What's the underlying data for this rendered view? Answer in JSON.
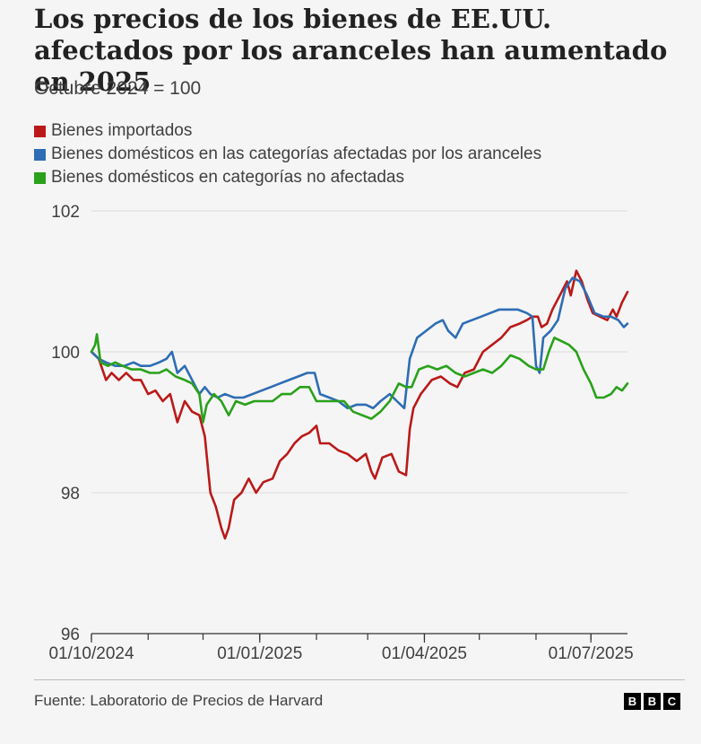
{
  "title": "Los precios de los bienes de EE.UU. afectados por los aranceles han aumentado en 2025",
  "subtitle": "Octubre 2024 = 100",
  "source": "Fuente: Laboratorio de Precios de Harvard",
  "logo": [
    "B",
    "B",
    "C"
  ],
  "chart_data": {
    "type": "line",
    "title": "Los precios de los bienes de EE.UU. afectados por los aranceles han aumentado en 2025",
    "subtitle": "Octubre 2024 = 100",
    "xlabel": "",
    "ylabel": "",
    "xlim": [
      "2024-10-01",
      "2025-07-21"
    ],
    "ylim": [
      96,
      102
    ],
    "yticks": [
      96,
      98,
      100,
      102
    ],
    "xticks": [
      "2024-10-01",
      "2025-01-01",
      "2025-04-01",
      "2025-07-01"
    ],
    "xtick_labels": [
      "01/10/2024",
      "01/01/2025",
      "01/04/2025",
      "01/07/2025"
    ],
    "grid": true,
    "legend": "top-left",
    "series": [
      {
        "name": "Bienes importados",
        "color": "#bb1919",
        "points": [
          [
            "2024-10-01",
            100.0
          ],
          [
            "2024-10-05",
            99.9
          ],
          [
            "2024-10-09",
            99.6
          ],
          [
            "2024-10-12",
            99.7
          ],
          [
            "2024-10-16",
            99.6
          ],
          [
            "2024-10-20",
            99.7
          ],
          [
            "2024-10-24",
            99.6
          ],
          [
            "2024-10-28",
            99.6
          ],
          [
            "2024-11-01",
            99.4
          ],
          [
            "2024-11-05",
            99.45
          ],
          [
            "2024-11-09",
            99.3
          ],
          [
            "2024-11-13",
            99.4
          ],
          [
            "2024-11-17",
            99.0
          ],
          [
            "2024-11-21",
            99.3
          ],
          [
            "2024-11-25",
            99.15
          ],
          [
            "2024-11-29",
            99.1
          ],
          [
            "2024-12-02",
            98.8
          ],
          [
            "2024-12-05",
            98.0
          ],
          [
            "2024-12-08",
            97.8
          ],
          [
            "2024-12-11",
            97.5
          ],
          [
            "2024-12-13",
            97.35
          ],
          [
            "2024-12-15",
            97.5
          ],
          [
            "2024-12-18",
            97.9
          ],
          [
            "2024-12-22",
            98.0
          ],
          [
            "2024-12-26",
            98.2
          ],
          [
            "2024-12-30",
            98.0
          ],
          [
            "2025-01-03",
            98.15
          ],
          [
            "2025-01-08",
            98.2
          ],
          [
            "2025-01-12",
            98.45
          ],
          [
            "2025-01-16",
            98.55
          ],
          [
            "2025-01-20",
            98.7
          ],
          [
            "2025-01-24",
            98.8
          ],
          [
            "2025-01-28",
            98.85
          ],
          [
            "2025-02-01",
            98.95
          ],
          [
            "2025-02-03",
            98.7
          ],
          [
            "2025-02-08",
            98.7
          ],
          [
            "2025-02-13",
            98.6
          ],
          [
            "2025-02-18",
            98.55
          ],
          [
            "2025-02-23",
            98.45
          ],
          [
            "2025-02-28",
            98.55
          ],
          [
            "2025-03-03",
            98.3
          ],
          [
            "2025-03-05",
            98.2
          ],
          [
            "2025-03-09",
            98.5
          ],
          [
            "2025-03-14",
            98.55
          ],
          [
            "2025-03-18",
            98.3
          ],
          [
            "2025-03-22",
            98.25
          ],
          [
            "2025-03-24",
            98.9
          ],
          [
            "2025-03-26",
            99.2
          ],
          [
            "2025-03-30",
            99.4
          ],
          [
            "2025-04-05",
            99.6
          ],
          [
            "2025-04-10",
            99.65
          ],
          [
            "2025-04-15",
            99.55
          ],
          [
            "2025-04-19",
            99.5
          ],
          [
            "2025-04-23",
            99.7
          ],
          [
            "2025-04-28",
            99.75
          ],
          [
            "2025-05-03",
            100.0
          ],
          [
            "2025-05-08",
            100.1
          ],
          [
            "2025-05-13",
            100.2
          ],
          [
            "2025-05-18",
            100.35
          ],
          [
            "2025-05-23",
            100.4
          ],
          [
            "2025-05-27",
            100.45
          ],
          [
            "2025-05-30",
            100.5
          ],
          [
            "2025-06-02",
            100.5
          ],
          [
            "2025-06-04",
            100.35
          ],
          [
            "2025-06-07",
            100.4
          ],
          [
            "2025-06-10",
            100.6
          ],
          [
            "2025-06-14",
            100.8
          ],
          [
            "2025-06-18",
            101.0
          ],
          [
            "2025-06-20",
            100.8
          ],
          [
            "2025-06-23",
            101.15
          ],
          [
            "2025-06-26",
            101.0
          ],
          [
            "2025-06-29",
            100.75
          ],
          [
            "2025-07-02",
            100.55
          ],
          [
            "2025-07-06",
            100.5
          ],
          [
            "2025-07-10",
            100.45
          ],
          [
            "2025-07-13",
            100.6
          ],
          [
            "2025-07-15",
            100.5
          ],
          [
            "2025-07-18",
            100.7
          ],
          [
            "2025-07-21",
            100.85
          ]
        ]
      },
      {
        "name": "Bienes domésticos en las categorías afectadas por los aranceles",
        "color": "#2e6db4",
        "points": [
          [
            "2024-10-01",
            100.0
          ],
          [
            "2024-10-05",
            99.9
          ],
          [
            "2024-10-09",
            99.85
          ],
          [
            "2024-10-14",
            99.8
          ],
          [
            "2024-10-19",
            99.8
          ],
          [
            "2024-10-24",
            99.85
          ],
          [
            "2024-10-28",
            99.8
          ],
          [
            "2024-11-02",
            99.8
          ],
          [
            "2024-11-07",
            99.85
          ],
          [
            "2024-11-11",
            99.9
          ],
          [
            "2024-11-14",
            100.0
          ],
          [
            "2024-11-17",
            99.7
          ],
          [
            "2024-11-21",
            99.8
          ],
          [
            "2024-11-25",
            99.6
          ],
          [
            "2024-11-29",
            99.4
          ],
          [
            "2024-12-02",
            99.5
          ],
          [
            "2024-12-05",
            99.4
          ],
          [
            "2024-12-09",
            99.35
          ],
          [
            "2024-12-13",
            99.4
          ],
          [
            "2024-12-18",
            99.35
          ],
          [
            "2024-12-23",
            99.35
          ],
          [
            "2024-12-28",
            99.4
          ],
          [
            "2025-01-02",
            99.45
          ],
          [
            "2025-01-07",
            99.5
          ],
          [
            "2025-01-12",
            99.55
          ],
          [
            "2025-01-17",
            99.6
          ],
          [
            "2025-01-22",
            99.65
          ],
          [
            "2025-01-27",
            99.7
          ],
          [
            "2025-01-31",
            99.7
          ],
          [
            "2025-02-03",
            99.4
          ],
          [
            "2025-02-08",
            99.35
          ],
          [
            "2025-02-13",
            99.3
          ],
          [
            "2025-02-18",
            99.2
          ],
          [
            "2025-02-23",
            99.25
          ],
          [
            "2025-02-28",
            99.25
          ],
          [
            "2025-03-04",
            99.2
          ],
          [
            "2025-03-08",
            99.3
          ],
          [
            "2025-03-13",
            99.4
          ],
          [
            "2025-03-17",
            99.3
          ],
          [
            "2025-03-21",
            99.2
          ],
          [
            "2025-03-24",
            99.9
          ],
          [
            "2025-03-28",
            100.2
          ],
          [
            "2025-04-02",
            100.3
          ],
          [
            "2025-04-07",
            100.4
          ],
          [
            "2025-04-11",
            100.45
          ],
          [
            "2025-04-14",
            100.3
          ],
          [
            "2025-04-18",
            100.2
          ],
          [
            "2025-04-22",
            100.4
          ],
          [
            "2025-04-27",
            100.45
          ],
          [
            "2025-05-02",
            100.5
          ],
          [
            "2025-05-07",
            100.55
          ],
          [
            "2025-05-12",
            100.6
          ],
          [
            "2025-05-17",
            100.6
          ],
          [
            "2025-05-22",
            100.6
          ],
          [
            "2025-05-27",
            100.55
          ],
          [
            "2025-05-30",
            100.5
          ],
          [
            "2025-06-01",
            99.8
          ],
          [
            "2025-06-03",
            99.7
          ],
          [
            "2025-06-05",
            100.2
          ],
          [
            "2025-06-09",
            100.3
          ],
          [
            "2025-06-13",
            100.45
          ],
          [
            "2025-06-17",
            100.9
          ],
          [
            "2025-06-21",
            101.05
          ],
          [
            "2025-06-25",
            101.0
          ],
          [
            "2025-06-29",
            100.8
          ],
          [
            "2025-07-03",
            100.55
          ],
          [
            "2025-07-08",
            100.5
          ],
          [
            "2025-07-12",
            100.5
          ],
          [
            "2025-07-16",
            100.45
          ],
          [
            "2025-07-19",
            100.35
          ],
          [
            "2025-07-21",
            100.4
          ]
        ]
      },
      {
        "name": "Bienes domésticos en categorías no afectadas",
        "color": "#2aa11b",
        "points": [
          [
            "2024-10-01",
            100.0
          ],
          [
            "2024-10-03",
            100.1
          ],
          [
            "2024-10-04",
            100.25
          ],
          [
            "2024-10-06",
            99.85
          ],
          [
            "2024-10-10",
            99.8
          ],
          [
            "2024-10-14",
            99.85
          ],
          [
            "2024-10-18",
            99.8
          ],
          [
            "2024-10-23",
            99.75
          ],
          [
            "2024-10-28",
            99.75
          ],
          [
            "2024-11-02",
            99.7
          ],
          [
            "2024-11-07",
            99.7
          ],
          [
            "2024-11-11",
            99.75
          ],
          [
            "2024-11-16",
            99.65
          ],
          [
            "2024-11-21",
            99.6
          ],
          [
            "2024-11-25",
            99.55
          ],
          [
            "2024-11-29",
            99.4
          ],
          [
            "2024-12-01",
            99.0
          ],
          [
            "2024-12-03",
            99.25
          ],
          [
            "2024-12-07",
            99.4
          ],
          [
            "2024-12-11",
            99.3
          ],
          [
            "2024-12-15",
            99.1
          ],
          [
            "2024-12-19",
            99.3
          ],
          [
            "2024-12-24",
            99.25
          ],
          [
            "2024-12-29",
            99.3
          ],
          [
            "2025-01-03",
            99.3
          ],
          [
            "2025-01-08",
            99.3
          ],
          [
            "2025-01-13",
            99.4
          ],
          [
            "2025-01-18",
            99.4
          ],
          [
            "2025-01-23",
            99.5
          ],
          [
            "2025-01-28",
            99.5
          ],
          [
            "2025-02-01",
            99.3
          ],
          [
            "2025-02-06",
            99.3
          ],
          [
            "2025-02-11",
            99.3
          ],
          [
            "2025-02-16",
            99.3
          ],
          [
            "2025-02-21",
            99.15
          ],
          [
            "2025-02-26",
            99.1
          ],
          [
            "2025-03-03",
            99.05
          ],
          [
            "2025-03-08",
            99.15
          ],
          [
            "2025-03-13",
            99.3
          ],
          [
            "2025-03-18",
            99.55
          ],
          [
            "2025-03-22",
            99.5
          ],
          [
            "2025-03-25",
            99.5
          ],
          [
            "2025-03-29",
            99.75
          ],
          [
            "2025-04-03",
            99.8
          ],
          [
            "2025-04-08",
            99.75
          ],
          [
            "2025-04-13",
            99.8
          ],
          [
            "2025-04-18",
            99.7
          ],
          [
            "2025-04-23",
            99.65
          ],
          [
            "2025-04-28",
            99.7
          ],
          [
            "2025-05-03",
            99.75
          ],
          [
            "2025-05-08",
            99.7
          ],
          [
            "2025-05-13",
            99.8
          ],
          [
            "2025-05-18",
            99.95
          ],
          [
            "2025-05-23",
            99.9
          ],
          [
            "2025-05-28",
            99.8
          ],
          [
            "2025-06-01",
            99.75
          ],
          [
            "2025-06-05",
            99.75
          ],
          [
            "2025-06-08",
            100.0
          ],
          [
            "2025-06-11",
            100.2
          ],
          [
            "2025-06-15",
            100.15
          ],
          [
            "2025-06-19",
            100.1
          ],
          [
            "2025-06-23",
            100.0
          ],
          [
            "2025-06-27",
            99.75
          ],
          [
            "2025-07-01",
            99.55
          ],
          [
            "2025-07-04",
            99.35
          ],
          [
            "2025-07-08",
            99.35
          ],
          [
            "2025-07-12",
            99.4
          ],
          [
            "2025-07-15",
            99.5
          ],
          [
            "2025-07-18",
            99.45
          ],
          [
            "2025-07-21",
            99.55
          ]
        ]
      }
    ]
  }
}
